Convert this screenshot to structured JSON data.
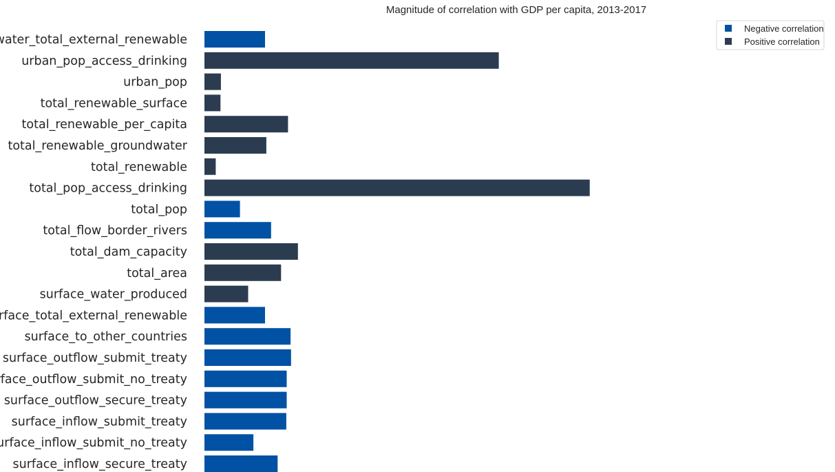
{
  "chart_data": {
    "type": "bar",
    "orientation": "horizontal",
    "title": "Magnitude of correlation with GDP per capita, 2013-2017",
    "xlabel": "",
    "ylabel": "",
    "xlim": [
      0,
      0.9
    ],
    "grid": false,
    "legend_position": "top-right",
    "legend": [
      {
        "name": "Negative correlation",
        "color": "#0151A4"
      },
      {
        "name": "Positive correlation",
        "color": "#2C3C50"
      }
    ],
    "categories": [
      "water_total_external_renewable",
      "urban_pop_access_drinking",
      "urban_pop",
      "total_renewable_surface",
      "total_renewable_per_capita",
      "total_renewable_groundwater",
      "total_renewable",
      "total_pop_access_drinking",
      "total_pop",
      "total_flow_border_rivers",
      "total_dam_capacity",
      "total_area",
      "surface_water_produced",
      "surface_total_external_renewable",
      "surface_to_other_countries",
      "surface_outflow_submit_treaty",
      "surface_outflow_submit_no_treaty",
      "surface_outflow_secure_treaty",
      "surface_inflow_submit_treaty",
      "surface_inflow_submit_no_treaty",
      "surface_inflow_secure_treaty"
    ],
    "values": [
      0.14,
      0.68,
      0.038,
      0.037,
      0.193,
      0.143,
      0.026,
      0.89,
      0.082,
      0.154,
      0.216,
      0.177,
      0.101,
      0.14,
      0.199,
      0.2,
      0.19,
      0.19,
      0.189,
      0.113,
      0.169
    ],
    "correlation_sign": [
      "negative",
      "positive",
      "positive",
      "positive",
      "positive",
      "positive",
      "positive",
      "positive",
      "negative",
      "negative",
      "positive",
      "positive",
      "positive",
      "negative",
      "negative",
      "negative",
      "negative",
      "negative",
      "negative",
      "negative",
      "negative"
    ]
  }
}
